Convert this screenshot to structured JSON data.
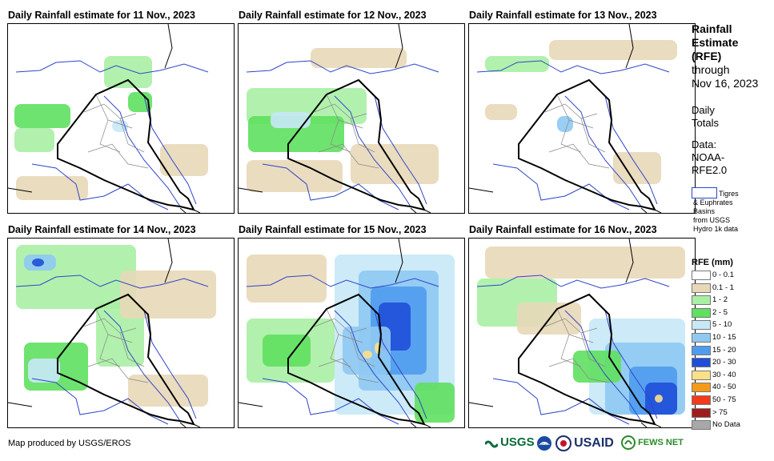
{
  "panels": [
    {
      "title": "Daily Rainfall estimate for 11 Nov., 2023"
    },
    {
      "title": "Daily Rainfall estimate for 12 Nov., 2023"
    },
    {
      "title": "Daily Rainfall estimate for 13 Nov., 2023"
    },
    {
      "title": "Daily Rainfall estimate for 14 Nov., 2023"
    },
    {
      "title": "Daily Rainfall estimate for 15 Nov., 2023"
    },
    {
      "title": "Daily Rainfall estimate for 16 Nov., 2023"
    }
  ],
  "side": {
    "title_lines": [
      "Rainfall",
      "Estimate",
      "(RFE)"
    ],
    "through": "through",
    "date": "Nov 16, 2023",
    "daily": "Daily",
    "totals": "Totals",
    "data_label": "Data:",
    "data_src1": "NOAA-",
    "data_src2": "RFE2.0",
    "basin_lines": [
      "Tigres",
      "& Euphrates",
      "Basins",
      "from USGS",
      "Hydro 1k data"
    ]
  },
  "legend": {
    "title": "RFE (mm)",
    "items": [
      {
        "label": "0 - 0.1",
        "color": "#ffffff"
      },
      {
        "label": "0.1 - 1",
        "color": "#e8d8b8"
      },
      {
        "label": "1 - 2",
        "color": "#a9f0a4"
      },
      {
        "label": "2 - 5",
        "color": "#5fe05f"
      },
      {
        "label": "5 - 10",
        "color": "#c7e8f7"
      },
      {
        "label": "10 - 15",
        "color": "#8fc9f2"
      },
      {
        "label": "15 - 20",
        "color": "#4f9cee"
      },
      {
        "label": "20 - 30",
        "color": "#1f4fd8"
      },
      {
        "label": "30 - 40",
        "color": "#fbe08a"
      },
      {
        "label": "40 - 50",
        "color": "#f59a16"
      },
      {
        "label": "50 - 75",
        "color": "#f03c1c"
      },
      {
        "label": "> 75",
        "color": "#a01c1c"
      },
      {
        "label": "No Data",
        "color": "#a8a8a8"
      }
    ]
  },
  "footer": {
    "credit": "Map produced by USGS/EROS",
    "logo_usgs": "USGS",
    "logo_noaa": "NOAA",
    "logo_usaid": "USAID",
    "logo_fews": "FEWS NET"
  }
}
